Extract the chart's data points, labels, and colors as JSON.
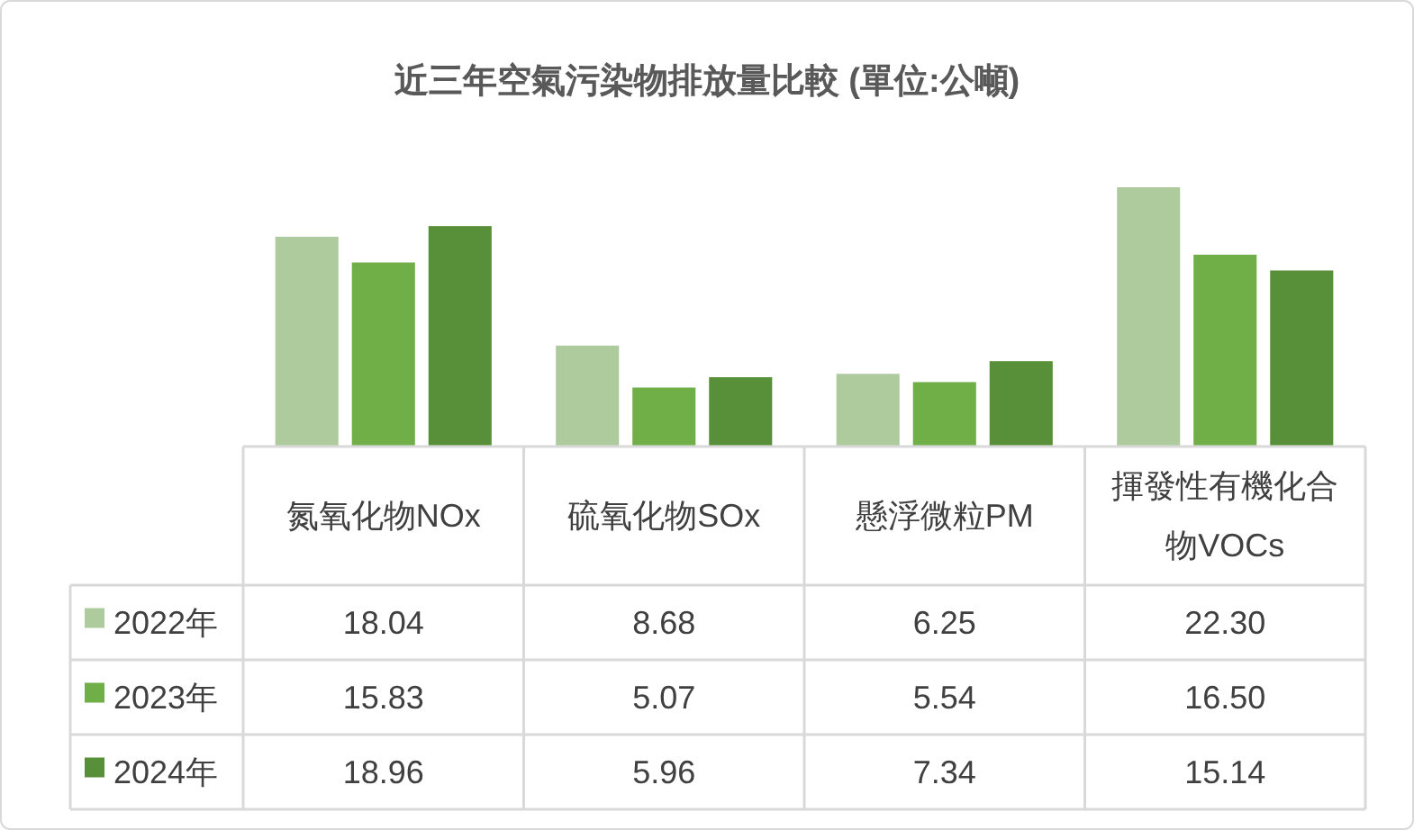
{
  "chart_data": {
    "type": "bar",
    "title": "近三年空氣污染物排放量比較 (單位:公噸)",
    "categories": [
      "氮氧化物NOx",
      "硫氧化物SOx",
      "懸浮微粒PM",
      "揮發性有機化合物VOCs"
    ],
    "tick_labels": "x",
    "legend": "bottom left",
    "series": [
      {
        "name": "2022年",
        "color": "#aecb9e",
        "values": [
          18.04,
          8.68,
          6.25,
          22.3
        ],
        "value_labels": [
          "18.04",
          "8.68",
          "6.25",
          "22.30"
        ]
      },
      {
        "name": "2023年",
        "color": "#70ae48",
        "values": [
          15.83,
          5.07,
          5.54,
          16.5
        ],
        "value_labels": [
          "15.83",
          "5.07",
          "5.54",
          "16.50"
        ]
      },
      {
        "name": "2024年",
        "color": "#58903a",
        "values": [
          18.96,
          5.96,
          7.34,
          15.14
        ],
        "value_labels": [
          "18.96",
          "5.96",
          "7.34",
          "15.14"
        ]
      }
    ]
  }
}
